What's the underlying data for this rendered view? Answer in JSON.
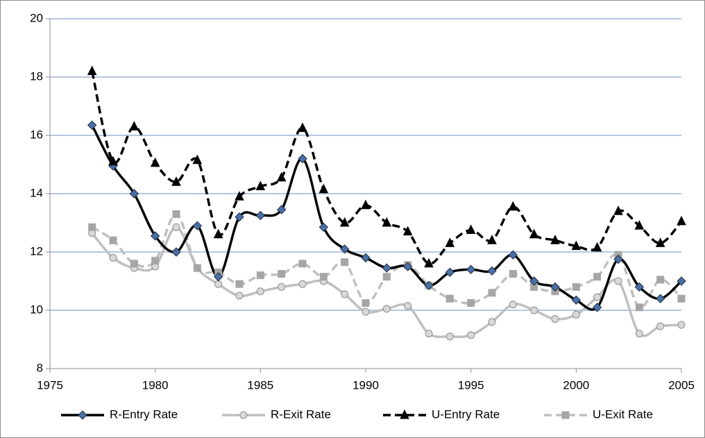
{
  "chart_data": {
    "type": "line",
    "x": [
      1977,
      1978,
      1979,
      1980,
      1981,
      1982,
      1983,
      1984,
      1985,
      1986,
      1987,
      1988,
      1989,
      1990,
      1991,
      1992,
      1993,
      1994,
      1995,
      1996,
      1997,
      1998,
      1999,
      2000,
      2001,
      2002,
      2003,
      2004,
      2005
    ],
    "series": [
      {
        "name": "R-Entry Rate",
        "color": "#000000",
        "marker": "diamond",
        "marker_color": "#4a6fa5",
        "dashed": false,
        "values": [
          16.35,
          14.95,
          14.0,
          12.55,
          12.0,
          12.9,
          11.15,
          13.2,
          13.25,
          13.45,
          15.2,
          12.85,
          12.1,
          11.8,
          11.45,
          11.5,
          10.85,
          11.3,
          11.4,
          11.35,
          11.9,
          11.0,
          10.8,
          10.35,
          10.1,
          11.75,
          10.8,
          10.4,
          11.0
        ]
      },
      {
        "name": "R-Exit Rate",
        "color": "#bfbfbf",
        "marker": "circle",
        "marker_color": "#d9d9d9",
        "dashed": false,
        "values": [
          12.65,
          11.8,
          11.45,
          11.5,
          12.85,
          11.45,
          10.9,
          10.5,
          10.65,
          10.8,
          10.9,
          11.0,
          10.55,
          9.95,
          10.05,
          10.15,
          9.2,
          9.1,
          9.15,
          9.6,
          10.2,
          10.0,
          9.7,
          9.85,
          10.45,
          11.0,
          9.2,
          9.45,
          9.5
        ]
      },
      {
        "name": "U-Entry Rate",
        "color": "#000000",
        "marker": "triangle",
        "marker_color": "#000000",
        "dashed": true,
        "values": [
          18.2,
          15.1,
          16.3,
          15.05,
          14.4,
          15.15,
          12.6,
          13.9,
          14.25,
          14.55,
          16.25,
          14.15,
          13.0,
          13.6,
          13.0,
          12.7,
          11.6,
          12.3,
          12.75,
          12.4,
          13.55,
          12.6,
          12.4,
          12.2,
          12.15,
          13.4,
          12.9,
          12.3,
          13.05
        ]
      },
      {
        "name": "U-Exit Rate",
        "color": "#bfbfbf",
        "marker": "square",
        "marker_color": "#a6a6a6",
        "dashed": true,
        "values": [
          12.85,
          12.4,
          11.6,
          11.7,
          13.3,
          11.45,
          11.3,
          10.9,
          11.2,
          11.25,
          11.6,
          11.15,
          11.65,
          10.25,
          11.15,
          11.55,
          10.85,
          10.4,
          10.25,
          10.6,
          11.25,
          10.8,
          10.65,
          10.8,
          11.15,
          11.9,
          10.1,
          11.05,
          10.4
        ]
      }
    ],
    "xlim": [
      1975,
      2005
    ],
    "xticks": [
      1975,
      1980,
      1985,
      1990,
      1995,
      2000,
      2005
    ],
    "ylim": [
      8,
      20
    ],
    "yticks": [
      8,
      10,
      12,
      14,
      16,
      18,
      20
    ],
    "grid": true,
    "grid_color": "#9db3d6",
    "legend": "bottom"
  }
}
